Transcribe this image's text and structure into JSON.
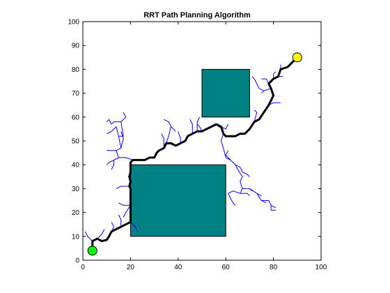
{
  "chart_data": {
    "type": "scatter",
    "title": "RRT Path Planning Algorithm",
    "xlabel": "",
    "ylabel": "",
    "xlim": [
      0,
      100
    ],
    "ylim": [
      0,
      100
    ],
    "xticks": [
      0,
      20,
      40,
      60,
      80,
      100
    ],
    "yticks": [
      0,
      10,
      20,
      30,
      40,
      50,
      60,
      70,
      80,
      90,
      100
    ],
    "grid": false,
    "colors": {
      "obstacle": "#008080",
      "tree": "#0000ff",
      "path": "#000000",
      "start": "#00ff00",
      "goal": "#ffff00"
    },
    "obstacles": [
      {
        "x": [
          20,
          60
        ],
        "y": [
          10,
          40
        ]
      },
      {
        "x": [
          50,
          70
        ],
        "y": [
          60,
          80
        ]
      }
    ],
    "start": {
      "x": 4,
      "y": 4
    },
    "goal": {
      "x": 90,
      "y": 85
    },
    "path": [
      [
        4,
        4
      ],
      [
        4,
        8
      ],
      [
        6,
        9
      ],
      [
        8,
        8
      ],
      [
        10,
        8.5
      ],
      [
        11,
        10
      ],
      [
        12,
        12
      ],
      [
        14,
        13
      ],
      [
        16,
        14
      ],
      [
        18,
        15
      ],
      [
        20,
        16
      ],
      [
        20,
        23
      ],
      [
        20,
        30
      ],
      [
        19.5,
        31
      ],
      [
        20,
        33
      ],
      [
        19.5,
        35
      ],
      [
        20,
        37
      ],
      [
        20,
        41
      ],
      [
        21,
        42
      ],
      [
        23,
        42
      ],
      [
        26,
        42
      ],
      [
        28,
        43
      ],
      [
        30,
        43
      ],
      [
        31,
        45
      ],
      [
        32,
        46
      ],
      [
        34,
        47
      ],
      [
        35,
        49
      ],
      [
        37,
        49
      ],
      [
        39,
        48
      ],
      [
        41,
        49
      ],
      [
        43,
        50
      ],
      [
        44,
        52
      ],
      [
        46,
        53
      ],
      [
        48,
        54
      ],
      [
        50,
        54
      ],
      [
        52,
        55
      ],
      [
        54,
        56
      ],
      [
        56,
        57
      ],
      [
        58,
        56
      ],
      [
        59,
        53
      ],
      [
        60,
        52
      ],
      [
        62,
        52
      ],
      [
        64,
        52
      ],
      [
        66,
        53
      ],
      [
        68,
        53
      ],
      [
        70,
        55
      ],
      [
        72,
        58
      ],
      [
        74,
        59
      ],
      [
        76,
        62
      ],
      [
        78,
        65
      ],
      [
        80,
        69
      ],
      [
        79,
        72
      ],
      [
        78,
        74
      ],
      [
        80,
        76
      ],
      [
        82,
        77
      ],
      [
        83,
        80
      ],
      [
        86,
        81
      ],
      [
        88,
        83
      ],
      [
        90,
        85
      ]
    ],
    "tree_branches": [
      [
        [
          4,
          8
        ],
        [
          2,
          10
        ],
        [
          1,
          12
        ]
      ],
      [
        [
          6,
          9
        ],
        [
          8,
          11
        ],
        [
          9,
          13
        ]
      ],
      [
        [
          12,
          12
        ],
        [
          13,
          14
        ],
        [
          12,
          16
        ]
      ],
      [
        [
          16,
          14
        ],
        [
          16,
          17
        ],
        [
          15,
          19
        ]
      ],
      [
        [
          20,
          16
        ],
        [
          22,
          14
        ],
        [
          23,
          12
        ]
      ],
      [
        [
          20,
          23
        ],
        [
          17,
          23
        ],
        [
          15,
          24
        ]
      ],
      [
        [
          20,
          23
        ],
        [
          18,
          20
        ],
        [
          17,
          18
        ]
      ],
      [
        [
          19.5,
          31
        ],
        [
          16,
          31
        ],
        [
          14,
          30
        ]
      ],
      [
        [
          21,
          42
        ],
        [
          18,
          43
        ],
        [
          15,
          43
        ],
        [
          13,
          42
        ]
      ],
      [
        [
          15,
          43
        ],
        [
          14,
          46
        ],
        [
          16,
          47
        ]
      ],
      [
        [
          16,
          47
        ],
        [
          15,
          52
        ],
        [
          14,
          56
        ]
      ],
      [
        [
          16,
          47
        ],
        [
          17,
          51
        ],
        [
          16,
          54
        ]
      ],
      [
        [
          15,
          52
        ],
        [
          17,
          52
        ],
        [
          16,
          58
        ]
      ],
      [
        [
          16,
          58
        ],
        [
          13,
          58
        ],
        [
          12,
          57
        ]
      ],
      [
        [
          16,
          58
        ],
        [
          18,
          60
        ],
        [
          17,
          62
        ]
      ],
      [
        [
          12,
          57
        ],
        [
          11,
          59
        ],
        [
          10,
          58
        ]
      ],
      [
        [
          14,
          56
        ],
        [
          12,
          54
        ],
        [
          10,
          53
        ]
      ],
      [
        [
          13,
          42
        ],
        [
          11,
          41
        ],
        [
          10,
          40
        ]
      ],
      [
        [
          13,
          42
        ],
        [
          13,
          40
        ],
        [
          12,
          38
        ]
      ],
      [
        [
          14,
          46
        ],
        [
          10,
          46
        ]
      ],
      [
        [
          34,
          47
        ],
        [
          34,
          51
        ],
        [
          33,
          53
        ]
      ],
      [
        [
          35,
          49
        ],
        [
          36,
          52
        ],
        [
          37,
          56
        ]
      ],
      [
        [
          37,
          56
        ],
        [
          36,
          58
        ],
        [
          34,
          59
        ]
      ],
      [
        [
          37,
          56
        ],
        [
          38,
          55
        ],
        [
          39,
          54
        ]
      ],
      [
        [
          41,
          49
        ],
        [
          41,
          51
        ],
        [
          40,
          54
        ]
      ],
      [
        [
          46,
          53
        ],
        [
          46,
          57
        ],
        [
          45,
          59
        ]
      ],
      [
        [
          48,
          54
        ],
        [
          48,
          58
        ],
        [
          49,
          60
        ]
      ],
      [
        [
          50,
          54
        ],
        [
          49,
          56
        ],
        [
          48,
          57
        ]
      ],
      [
        [
          56,
          57
        ],
        [
          57,
          56
        ],
        [
          59,
          55
        ]
      ],
      [
        [
          58,
          56
        ],
        [
          60,
          55
        ],
        [
          61,
          57
        ]
      ],
      [
        [
          59,
          53
        ],
        [
          58,
          50
        ],
        [
          59,
          47
        ]
      ],
      [
        [
          59,
          47
        ],
        [
          60,
          43
        ],
        [
          62,
          42
        ]
      ],
      [
        [
          62,
          42
        ],
        [
          64,
          40
        ],
        [
          65,
          38
        ]
      ],
      [
        [
          64,
          40
        ],
        [
          66,
          39
        ],
        [
          67,
          37
        ]
      ],
      [
        [
          65,
          38
        ],
        [
          67,
          35
        ],
        [
          66,
          33
        ]
      ],
      [
        [
          66,
          33
        ],
        [
          67,
          30
        ],
        [
          66,
          28
        ]
      ],
      [
        [
          66,
          28
        ],
        [
          63,
          29
        ],
        [
          61,
          28
        ]
      ],
      [
        [
          66,
          28
        ],
        [
          69,
          28
        ],
        [
          70,
          27
        ]
      ],
      [
        [
          67,
          30
        ],
        [
          70,
          30
        ],
        [
          71,
          29
        ]
      ],
      [
        [
          70,
          30
        ],
        [
          73,
          28
        ],
        [
          75,
          27
        ]
      ],
      [
        [
          73,
          28
        ],
        [
          75,
          25
        ],
        [
          77,
          24
        ]
      ],
      [
        [
          75,
          25
        ],
        [
          78,
          25
        ],
        [
          79,
          23
        ]
      ],
      [
        [
          79,
          23
        ],
        [
          79,
          21
        ],
        [
          81,
          21
        ]
      ],
      [
        [
          79,
          23
        ],
        [
          81,
          22
        ]
      ],
      [
        [
          67,
          37
        ],
        [
          69,
          36
        ],
        [
          70,
          35
        ]
      ],
      [
        [
          62,
          42
        ],
        [
          60,
          44
        ],
        [
          61,
          46
        ]
      ],
      [
        [
          61,
          28
        ],
        [
          62,
          26
        ],
        [
          63,
          24
        ]
      ],
      [
        [
          63,
          24
        ],
        [
          64,
          23
        ]
      ],
      [
        [
          72,
          58
        ],
        [
          73,
          62
        ],
        [
          72,
          63
        ]
      ],
      [
        [
          74,
          59
        ],
        [
          75,
          61
        ]
      ],
      [
        [
          78,
          65
        ],
        [
          80,
          66
        ],
        [
          83,
          66
        ]
      ],
      [
        [
          80,
          69
        ],
        [
          79,
          72
        ],
        [
          76,
          71
        ]
      ],
      [
        [
          76,
          71
        ],
        [
          75,
          70
        ]
      ],
      [
        [
          78,
          74
        ],
        [
          77,
          76
        ],
        [
          75,
          76
        ]
      ],
      [
        [
          80,
          76
        ],
        [
          80,
          78
        ],
        [
          81,
          79
        ]
      ],
      [
        [
          82,
          77
        ],
        [
          84,
          77
        ]
      ],
      [
        [
          76,
          71
        ],
        [
          74,
          72
        ],
        [
          73,
          74
        ]
      ],
      [
        [
          73,
          74
        ],
        [
          72,
          76
        ],
        [
          71,
          77
        ]
      ],
      [
        [
          83,
          80
        ],
        [
          83,
          82
        ]
      ]
    ]
  }
}
